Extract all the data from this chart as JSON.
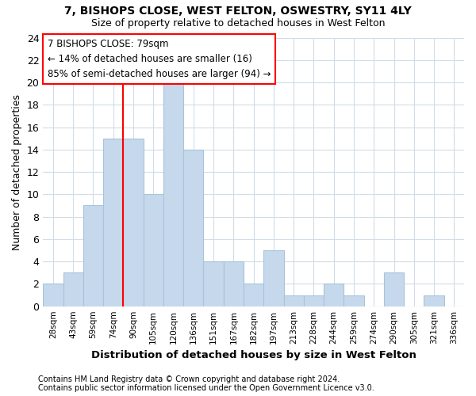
{
  "title1": "7, BISHOPS CLOSE, WEST FELTON, OSWESTRY, SY11 4LY",
  "title2": "Size of property relative to detached houses in West Felton",
  "xlabel": "Distribution of detached houses by size in West Felton",
  "ylabel": "Number of detached properties",
  "categories": [
    "28sqm",
    "43sqm",
    "59sqm",
    "74sqm",
    "90sqm",
    "105sqm",
    "120sqm",
    "136sqm",
    "151sqm",
    "167sqm",
    "182sqm",
    "197sqm",
    "213sqm",
    "228sqm",
    "244sqm",
    "259sqm",
    "274sqm",
    "290sqm",
    "305sqm",
    "321sqm",
    "336sqm"
  ],
  "values": [
    2,
    3,
    9,
    15,
    15,
    10,
    20,
    14,
    4,
    4,
    2,
    5,
    1,
    1,
    2,
    1,
    0,
    3,
    0,
    1,
    0
  ],
  "bar_color": "#c6d9ec",
  "bar_edge_color": "#a8c4d8",
  "vline_x": 3.5,
  "vline_color": "red",
  "annotation_text": "7 BISHOPS CLOSE: 79sqm\n← 14% of detached houses are smaller (16)\n85% of semi-detached houses are larger (94) →",
  "annotation_box_color": "white",
  "annotation_box_edge": "red",
  "ylim": [
    0,
    24
  ],
  "yticks": [
    0,
    2,
    4,
    6,
    8,
    10,
    12,
    14,
    16,
    18,
    20,
    22,
    24
  ],
  "footnote1": "Contains HM Land Registry data © Crown copyright and database right 2024.",
  "footnote2": "Contains public sector information licensed under the Open Government Licence v3.0.",
  "bg_color": "white",
  "plot_bg_color": "white",
  "grid_color": "#d0dce8"
}
